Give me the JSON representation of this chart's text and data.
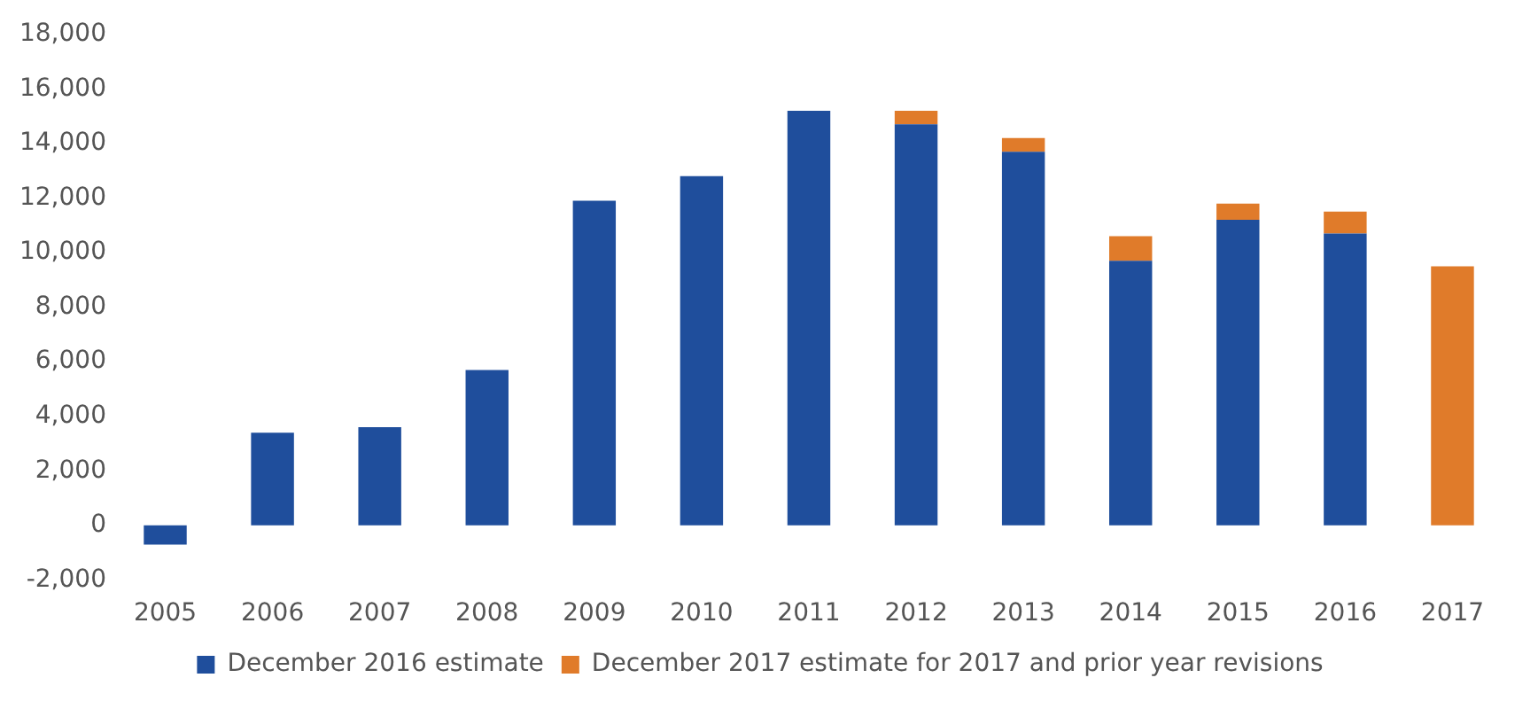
{
  "chart_data": {
    "type": "bar",
    "stacked": true,
    "categories": [
      "2005",
      "2006",
      "2007",
      "2008",
      "2009",
      "2010",
      "2011",
      "2012",
      "2013",
      "2014",
      "2015",
      "2016",
      "2017"
    ],
    "series": [
      {
        "name": "December 2016 estimate",
        "color": "#1f4e9c",
        "values": [
          -700,
          3400,
          3600,
          5700,
          11900,
          12800,
          15200,
          14700,
          13700,
          9700,
          11200,
          10700,
          0
        ]
      },
      {
        "name": "December 2017 estimate for 2017 and prior year revisions",
        "color": "#e07b2a",
        "values": [
          0,
          0,
          0,
          0,
          0,
          0,
          0,
          500,
          500,
          900,
          600,
          800,
          9500
        ]
      }
    ],
    "ylim": [
      -2000,
      18000
    ],
    "yticks": [
      {
        "value": -2000,
        "label": "-2,000"
      },
      0,
      {
        "value": 2000,
        "label": "2,000"
      },
      {
        "value": 4000,
        "label": "4,000"
      },
      {
        "value": 6000,
        "label": "6,000"
      },
      {
        "value": 8000,
        "label": "8,000"
      },
      {
        "value": 10000,
        "label": "10,000"
      },
      {
        "value": 12000,
        "label": "12,000"
      },
      {
        "value": 14000,
        "label": "14,000"
      },
      {
        "value": 16000,
        "label": "16,000"
      },
      {
        "value": 18000,
        "label": "18,000"
      }
    ],
    "grid": false,
    "legend": "bottom"
  }
}
